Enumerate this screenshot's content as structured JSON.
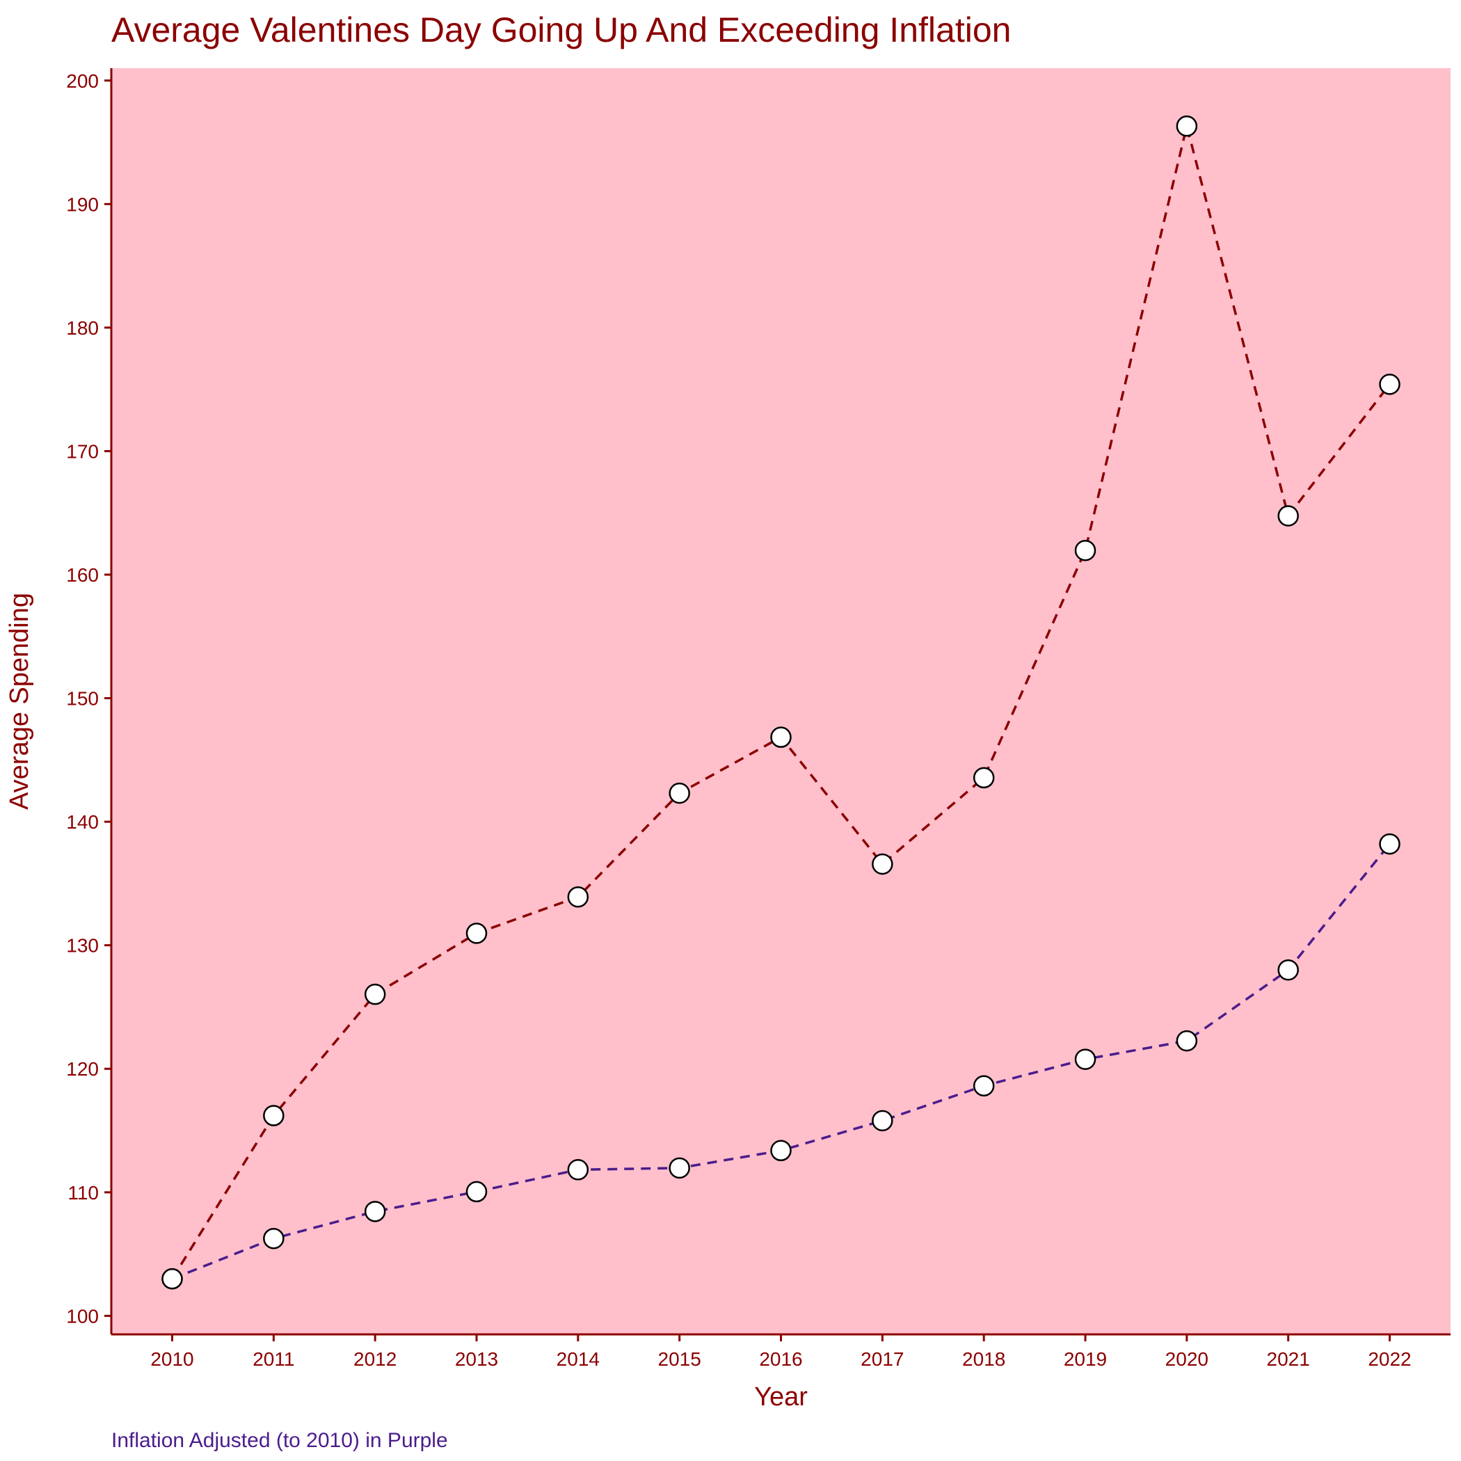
{
  "chart_data": {
    "type": "line",
    "title": "Average Valentines Day Going Up And Exceeding Inflation",
    "xlabel": "Year",
    "ylabel": "Average Spending",
    "caption": "Inflation Adjusted (to 2010) in Purple",
    "x": [
      2010,
      2011,
      2012,
      2013,
      2014,
      2015,
      2016,
      2017,
      2018,
      2019,
      2020,
      2021,
      2022
    ],
    "x_tick_labels": [
      "2010",
      "2011",
      "2012",
      "2013",
      "2014",
      "2015",
      "2016",
      "2017",
      "2018",
      "2019",
      "2020",
      "2021",
      "2022"
    ],
    "y_ticks": [
      100,
      110,
      120,
      130,
      140,
      150,
      160,
      170,
      180,
      190,
      200
    ],
    "y_tick_labels": [
      "100",
      "110",
      "120",
      "130",
      "140",
      "150",
      "160",
      "170",
      "180",
      "190",
      "200"
    ],
    "xlim": [
      2009.4,
      2022.6
    ],
    "ylim": [
      98.5,
      201
    ],
    "grid": false,
    "panel_background": "#ffc0cb",
    "text_color": "#8b0000",
    "series": [
      {
        "values": [
          103.0,
          116.21,
          126.03,
          130.97,
          133.91,
          142.31,
          146.84,
          136.57,
          143.56,
          161.96,
          196.31,
          164.76,
          175.41
        ],
        "color": "#8b0000",
        "line_style": "dashed"
      },
      {
        "values": [
          103.0,
          106.26,
          108.45,
          110.05,
          111.83,
          111.97,
          113.38,
          115.8,
          118.62,
          120.77,
          122.26,
          128.0,
          138.2
        ],
        "color": "#4b1c8c",
        "line_style": "dashed"
      }
    ],
    "marker": {
      "fill": "#ffffff",
      "stroke": "#000000"
    }
  }
}
